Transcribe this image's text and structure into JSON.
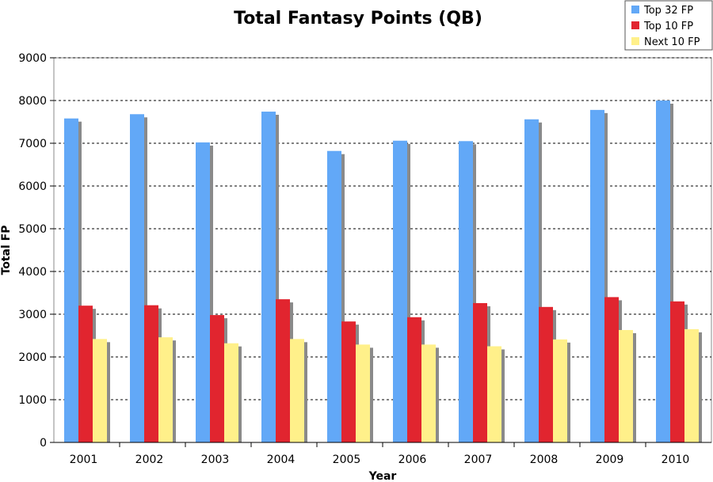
{
  "chart_data": {
    "type": "bar",
    "title": "Total Fantasy Points (QB)",
    "xlabel": "Year",
    "ylabel": "Total FP",
    "ylim": [
      0,
      9000
    ],
    "yticks": [
      0,
      1000,
      2000,
      3000,
      4000,
      5000,
      6000,
      7000,
      8000,
      9000
    ],
    "grid": true,
    "legend_position": "top-right",
    "categories": [
      "2001",
      "2002",
      "2003",
      "2004",
      "2005",
      "2006",
      "2007",
      "2008",
      "2009",
      "2010"
    ],
    "series": [
      {
        "name": "Top 32 FP",
        "color": "#62a8f7",
        "values": [
          7580,
          7680,
          7020,
          7740,
          6820,
          7060,
          7050,
          7560,
          7780,
          8000
        ]
      },
      {
        "name": "Top 10 FP",
        "color": "#e1252f",
        "values": [
          3200,
          3210,
          2980,
          3350,
          2830,
          2930,
          3260,
          3170,
          3400,
          3300
        ]
      },
      {
        "name": "Next 10 FP",
        "color": "#fff08a",
        "values": [
          2420,
          2460,
          2320,
          2420,
          2290,
          2290,
          2250,
          2410,
          2630,
          2650
        ]
      }
    ]
  }
}
